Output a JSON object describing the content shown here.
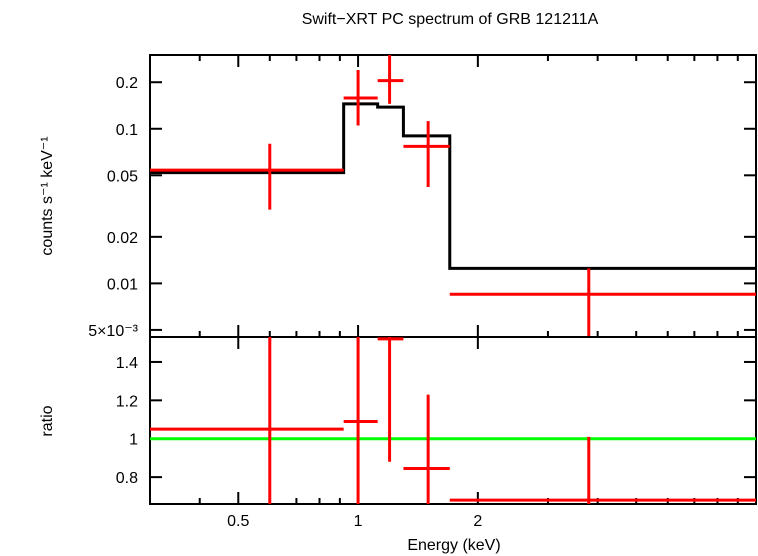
{
  "colors": {
    "model": "#000000",
    "data": "#ff0000",
    "ratio_ref": "#00ff00",
    "axis": "#000000",
    "background": "#ffffff"
  },
  "chart_data": [
    {
      "type": "line",
      "title": "Swift−XRT PC spectrum of GRB 121211A",
      "xlabel": "",
      "ylabel": "counts s⁻¹ keV⁻¹",
      "xscale": "log",
      "yscale": "log",
      "xlim": [
        0.3,
        10.0
      ],
      "ylim": [
        0.0045,
        0.3
      ],
      "yticks": [
        {
          "value": 0.2,
          "label": "0.2"
        },
        {
          "value": 0.1,
          "label": "0.1"
        },
        {
          "value": 0.05,
          "label": "0.05"
        },
        {
          "value": 0.02,
          "label": "0.02"
        },
        {
          "value": 0.01,
          "label": "0.01"
        },
        {
          "value": 0.005,
          "label": "5×10⁻³"
        }
      ],
      "model": {
        "name": "model",
        "edges": [
          0.3,
          0.92,
          1.12,
          1.3,
          1.7,
          10.0
        ],
        "values": [
          0.052,
          0.145,
          0.138,
          0.09,
          0.0125
        ]
      },
      "data": {
        "name": "data",
        "points": [
          {
            "x": 0.6,
            "xlo": 0.3,
            "xhi": 0.92,
            "y": 0.054,
            "ylo": 0.03,
            "yhi": 0.08
          },
          {
            "x": 1.0,
            "xlo": 0.92,
            "xhi": 1.12,
            "y": 0.158,
            "ylo": 0.105,
            "yhi": 0.24
          },
          {
            "x": 1.2,
            "xlo": 1.12,
            "xhi": 1.3,
            "y": 0.205,
            "ylo": 0.145,
            "yhi": 0.3
          },
          {
            "x": 1.5,
            "xlo": 1.3,
            "xhi": 1.7,
            "y": 0.077,
            "ylo": 0.042,
            "yhi": 0.112
          },
          {
            "x": 3.8,
            "xlo": 1.7,
            "xhi": 10.0,
            "y": 0.0085,
            "ylo": 0.0045,
            "yhi": 0.0125
          }
        ]
      }
    },
    {
      "type": "scatter",
      "title": "",
      "xlabel": "Energy (keV)",
      "ylabel": "ratio",
      "xscale": "log",
      "yscale": "linear",
      "xlim": [
        0.3,
        10.0
      ],
      "ylim": [
        0.66,
        1.53
      ],
      "yticks": [
        {
          "value": 1.4,
          "label": "1.4"
        },
        {
          "value": 1.2,
          "label": "1.2"
        },
        {
          "value": 1.0,
          "label": "1"
        },
        {
          "value": 0.8,
          "label": "0.8"
        }
      ],
      "xticks": [
        {
          "value": 0.5,
          "label": "0.5"
        },
        {
          "value": 1.0,
          "label": "1"
        },
        {
          "value": 2.0,
          "label": "2"
        }
      ],
      "reference": 1.0,
      "data": {
        "name": "ratio",
        "points": [
          {
            "x": 0.6,
            "xlo": 0.3,
            "xhi": 0.92,
            "y": 1.05,
            "ylo": 0.66,
            "yhi": 1.53
          },
          {
            "x": 1.0,
            "xlo": 0.92,
            "xhi": 1.12,
            "y": 1.09,
            "ylo": 0.66,
            "yhi": 1.53
          },
          {
            "x": 1.2,
            "xlo": 1.12,
            "xhi": 1.3,
            "y": 1.52,
            "ylo": 0.88,
            "yhi": 1.53
          },
          {
            "x": 1.5,
            "xlo": 1.3,
            "xhi": 1.7,
            "y": 0.845,
            "ylo": 0.66,
            "yhi": 1.23
          },
          {
            "x": 3.8,
            "xlo": 1.7,
            "xhi": 10.0,
            "y": 0.68,
            "ylo": 0.66,
            "yhi": 1.01
          }
        ]
      }
    }
  ]
}
